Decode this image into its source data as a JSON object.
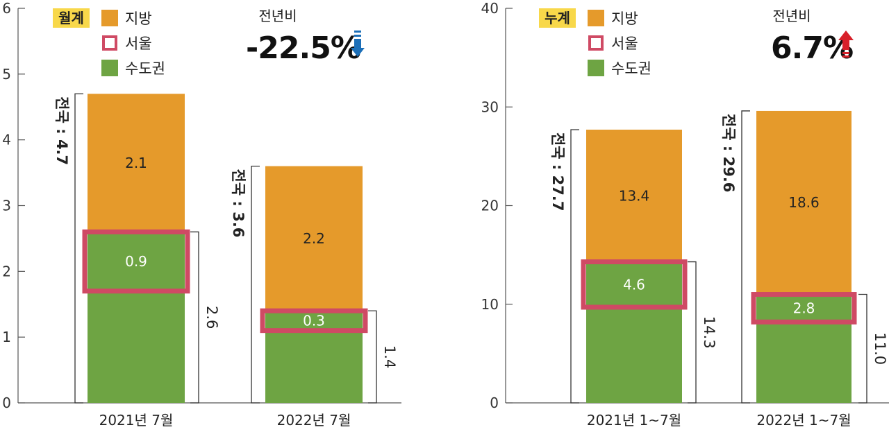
{
  "colors": {
    "regional": "#e59a2b",
    "capital": "#6ea443",
    "seoul": "#cf4a64",
    "badge": "#f8d84a",
    "down": "#1c6fb8",
    "up": "#d8202a"
  },
  "chart_data": [
    {
      "type": "bar",
      "stacked": true,
      "badge": "월계",
      "legend": [
        "지방",
        "서울",
        "수도권"
      ],
      "yoy": {
        "label": "전년비",
        "value": "-22.5%",
        "direction": "down"
      },
      "ylim": [
        0,
        6
      ],
      "yticks": [
        "0",
        "1",
        "2",
        "3",
        "4",
        "5",
        "6"
      ],
      "categories": [
        "2021년 7월",
        "2022년 7월"
      ],
      "series": [
        {
          "name": "수도권",
          "values": [
            2.6,
            1.4
          ]
        },
        {
          "name": "지방",
          "values": [
            2.1,
            2.2
          ]
        }
      ],
      "seoul": [
        0.9,
        0.3
      ],
      "national_labels": [
        "전국 : 4.7",
        "전국 : 3.6"
      ],
      "capital_labels": [
        "2.6",
        "1.4"
      ],
      "regional_labels": [
        "2.1",
        "2.2"
      ],
      "seoul_labels": [
        "0.9",
        "0.3"
      ]
    },
    {
      "type": "bar",
      "stacked": true,
      "badge": "누계",
      "legend": [
        "지방",
        "서울",
        "수도권"
      ],
      "yoy": {
        "label": "전년비",
        "value": "6.7%",
        "direction": "up"
      },
      "ylim": [
        0,
        40
      ],
      "yticks": [
        "0",
        "10",
        "20",
        "30",
        "40"
      ],
      "categories": [
        "2021년 1~7월",
        "2022년 1~7월"
      ],
      "series": [
        {
          "name": "수도권",
          "values": [
            14.3,
            11.0
          ]
        },
        {
          "name": "지방",
          "values": [
            13.4,
            18.6
          ]
        }
      ],
      "seoul": [
        4.6,
        2.8
      ],
      "national_labels": [
        "전국 : 27.7",
        "전국 : 29.6"
      ],
      "capital_labels": [
        "14.3",
        "11.0"
      ],
      "regional_labels": [
        "13.4",
        "18.6"
      ],
      "seoul_labels": [
        "4.6",
        "2.8"
      ]
    }
  ]
}
